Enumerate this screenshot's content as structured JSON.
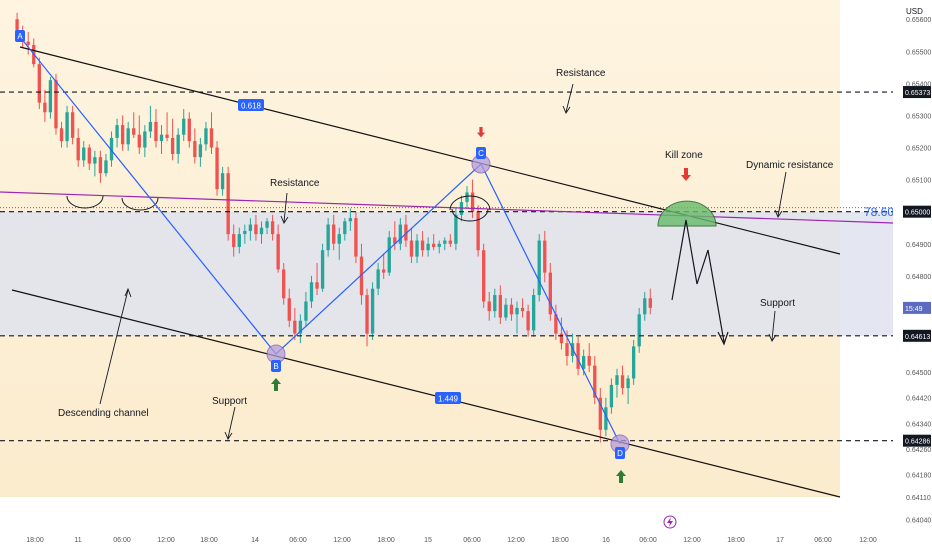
{
  "chart_data": {
    "type": "candlestick",
    "price_axis": {
      "unit_label": "USD",
      "ylim": [
        0.6402,
        0.6566
      ],
      "ticks": [
        "0.65600",
        "0.65500",
        "0.65400",
        "0.65300",
        "0.65200",
        "0.65100",
        "0.64900",
        "0.64800",
        "0.64700",
        "0.64500",
        "0.64420",
        "0.64340",
        "0.64260",
        "0.64180",
        "0.64110",
        "0.64040"
      ],
      "tick_values": [
        0.656,
        0.655,
        0.654,
        0.653,
        0.652,
        0.651,
        0.649,
        0.648,
        0.647,
        0.645,
        0.6442,
        0.6434,
        0.6426,
        0.6418,
        0.6411,
        0.6404
      ]
    },
    "time_axis": {
      "bar_range": [
        -4,
        205
      ],
      "ticks": [
        {
          "bar": 3,
          "label": "18:00"
        },
        {
          "bar": 16,
          "label": "11"
        },
        {
          "bar": 29,
          "label": "06:00"
        },
        {
          "bar": 41,
          "label": "12:00"
        },
        {
          "bar": 54,
          "label": "18:00"
        },
        {
          "bar": 66,
          "label": "14"
        },
        {
          "bar": 78,
          "label": "06:00"
        },
        {
          "bar": 90,
          "label": "12:00"
        },
        {
          "bar": 102,
          "label": "18:00"
        },
        {
          "bar": 114,
          "label": "15"
        },
        {
          "bar": 126,
          "label": "06:00"
        },
        {
          "bar": 138,
          "label": "12:00"
        },
        {
          "bar": 150,
          "label": "18:00"
        },
        {
          "bar": 162,
          "label": "16"
        },
        {
          "bar": 174,
          "label": "06:00"
        },
        {
          "bar": 185,
          "label": "12:00"
        },
        {
          "bar": 197,
          "label": "18:00"
        },
        {
          "bar": 209,
          "label": "17"
        },
        {
          "bar": 220,
          "label": "06:00"
        },
        {
          "bar": 232,
          "label": "12:00"
        }
      ]
    },
    "candles": [
      [
        0,
        0.656,
        0.6562,
        0.6554,
        0.6556
      ],
      [
        1,
        0.6556,
        0.6558,
        0.6551,
        0.6553
      ],
      [
        2,
        0.6553,
        0.6556,
        0.6549,
        0.6552
      ],
      [
        3,
        0.6552,
        0.6554,
        0.6545,
        0.6546
      ],
      [
        4,
        0.6546,
        0.6548,
        0.6532,
        0.6534
      ],
      [
        5,
        0.6534,
        0.6538,
        0.6528,
        0.6531
      ],
      [
        6,
        0.6531,
        0.6542,
        0.6529,
        0.6541
      ],
      [
        7,
        0.6541,
        0.6543,
        0.6524,
        0.6526
      ],
      [
        8,
        0.6526,
        0.6528,
        0.652,
        0.6522
      ],
      [
        9,
        0.6522,
        0.6533,
        0.652,
        0.6531
      ],
      [
        10,
        0.6531,
        0.6533,
        0.6521,
        0.6523
      ],
      [
        11,
        0.6523,
        0.6526,
        0.6514,
        0.6516
      ],
      [
        12,
        0.6516,
        0.6522,
        0.6514,
        0.652
      ],
      [
        13,
        0.652,
        0.6521,
        0.6513,
        0.6515
      ],
      [
        14,
        0.6515,
        0.6519,
        0.6511,
        0.6517
      ],
      [
        15,
        0.6517,
        0.6519,
        0.6509,
        0.6512
      ],
      [
        16,
        0.6512,
        0.6518,
        0.6511,
        0.6516
      ],
      [
        17,
        0.6516,
        0.6525,
        0.6514,
        0.6523
      ],
      [
        18,
        0.6523,
        0.6529,
        0.652,
        0.6527
      ],
      [
        19,
        0.6527,
        0.653,
        0.6519,
        0.6521
      ],
      [
        20,
        0.6521,
        0.6528,
        0.6519,
        0.6526
      ],
      [
        21,
        0.6526,
        0.6531,
        0.6523,
        0.6524
      ],
      [
        22,
        0.6524,
        0.653,
        0.6518,
        0.652
      ],
      [
        23,
        0.652,
        0.6527,
        0.6517,
        0.6525
      ],
      [
        24,
        0.6525,
        0.6533,
        0.6523,
        0.6528
      ],
      [
        25,
        0.6528,
        0.6532,
        0.652,
        0.6522
      ],
      [
        26,
        0.6522,
        0.6527,
        0.6518,
        0.6524
      ],
      [
        27,
        0.6524,
        0.6531,
        0.6522,
        0.6523
      ],
      [
        28,
        0.6523,
        0.6529,
        0.6516,
        0.6518
      ],
      [
        29,
        0.6518,
        0.6526,
        0.6515,
        0.6524
      ],
      [
        30,
        0.6524,
        0.6532,
        0.6522,
        0.6529
      ],
      [
        31,
        0.6529,
        0.6531,
        0.652,
        0.6522
      ],
      [
        32,
        0.6522,
        0.6526,
        0.6515,
        0.6517
      ],
      [
        33,
        0.6517,
        0.6523,
        0.6514,
        0.6521
      ],
      [
        34,
        0.6521,
        0.6528,
        0.6519,
        0.6526
      ],
      [
        35,
        0.6526,
        0.6531,
        0.6518,
        0.652
      ],
      [
        36,
        0.652,
        0.6522,
        0.6505,
        0.6507
      ],
      [
        37,
        0.6507,
        0.6514,
        0.6505,
        0.6512
      ],
      [
        38,
        0.6512,
        0.6514,
        0.6491,
        0.6493
      ],
      [
        39,
        0.6493,
        0.6496,
        0.6486,
        0.6489
      ],
      [
        40,
        0.6489,
        0.6495,
        0.6487,
        0.6493
      ],
      [
        41,
        0.6493,
        0.6496,
        0.649,
        0.6494
      ],
      [
        42,
        0.6494,
        0.6498,
        0.6491,
        0.6496
      ],
      [
        43,
        0.6496,
        0.6499,
        0.6491,
        0.6493
      ],
      [
        44,
        0.6493,
        0.6497,
        0.649,
        0.6495
      ],
      [
        45,
        0.6495,
        0.6498,
        0.6493,
        0.6497
      ],
      [
        46,
        0.6497,
        0.6499,
        0.6491,
        0.6493
      ],
      [
        47,
        0.6493,
        0.6496,
        0.6481,
        0.6482
      ],
      [
        48,
        0.6482,
        0.6484,
        0.6471,
        0.6473
      ],
      [
        49,
        0.6473,
        0.6476,
        0.6464,
        0.6466
      ],
      [
        50,
        0.6466,
        0.647,
        0.646,
        0.6462
      ],
      [
        51,
        0.6462,
        0.6468,
        0.6459,
        0.6466
      ],
      [
        52,
        0.6466,
        0.6475,
        0.6464,
        0.6472
      ],
      [
        53,
        0.6472,
        0.648,
        0.647,
        0.6478
      ],
      [
        54,
        0.6478,
        0.6484,
        0.6474,
        0.6476
      ],
      [
        55,
        0.6476,
        0.649,
        0.6475,
        0.6488
      ],
      [
        56,
        0.6488,
        0.6498,
        0.6486,
        0.6496
      ],
      [
        57,
        0.6496,
        0.6499,
        0.6488,
        0.649
      ],
      [
        58,
        0.649,
        0.6495,
        0.6485,
        0.6493
      ],
      [
        59,
        0.6493,
        0.6498,
        0.6491,
        0.6497
      ],
      [
        60,
        0.6497,
        0.6501,
        0.6494,
        0.6498
      ],
      [
        61,
        0.6498,
        0.65,
        0.6484,
        0.6486
      ],
      [
        62,
        0.6486,
        0.649,
        0.6471,
        0.6474
      ],
      [
        63,
        0.6474,
        0.6476,
        0.6458,
        0.6462
      ],
      [
        64,
        0.6462,
        0.6478,
        0.646,
        0.6476
      ],
      [
        65,
        0.6476,
        0.6484,
        0.6474,
        0.6482
      ],
      [
        66,
        0.6482,
        0.6487,
        0.6479,
        0.6481
      ],
      [
        67,
        0.6481,
        0.6494,
        0.648,
        0.6492
      ],
      [
        68,
        0.6492,
        0.6497,
        0.6488,
        0.649
      ],
      [
        69,
        0.649,
        0.6498,
        0.6488,
        0.6496
      ],
      [
        70,
        0.6496,
        0.6499,
        0.6489,
        0.6491
      ],
      [
        71,
        0.6491,
        0.6495,
        0.6484,
        0.6486
      ],
      [
        72,
        0.6486,
        0.6493,
        0.6484,
        0.6491
      ],
      [
        73,
        0.6491,
        0.6494,
        0.6486,
        0.6488
      ],
      [
        74,
        0.6488,
        0.6492,
        0.6486,
        0.649
      ],
      [
        75,
        0.649,
        0.6493,
        0.6488,
        0.6489
      ],
      [
        76,
        0.6489,
        0.6491,
        0.6487,
        0.649
      ],
      [
        77,
        0.649,
        0.6492,
        0.6488,
        0.6491
      ],
      [
        78,
        0.6491,
        0.6493,
        0.6489,
        0.649
      ],
      [
        79,
        0.649,
        0.6501,
        0.6488,
        0.6499
      ],
      [
        80,
        0.6499,
        0.6505,
        0.6497,
        0.6503
      ],
      [
        81,
        0.6503,
        0.6508,
        0.6501,
        0.6506
      ],
      [
        82,
        0.6506,
        0.651,
        0.6498,
        0.65
      ],
      [
        83,
        0.65,
        0.6502,
        0.6486,
        0.6488
      ],
      [
        84,
        0.6488,
        0.649,
        0.647,
        0.6472
      ],
      [
        85,
        0.6472,
        0.6475,
        0.6466,
        0.6469
      ],
      [
        86,
        0.6469,
        0.6476,
        0.6467,
        0.6474
      ],
      [
        87,
        0.6474,
        0.6477,
        0.6465,
        0.6467
      ],
      [
        88,
        0.6467,
        0.6473,
        0.6466,
        0.6471
      ],
      [
        89,
        0.6471,
        0.6473,
        0.6466,
        0.6468
      ],
      [
        90,
        0.6468,
        0.6472,
        0.6462,
        0.647
      ],
      [
        91,
        0.647,
        0.6473,
        0.6467,
        0.6469
      ],
      [
        92,
        0.6469,
        0.6471,
        0.6461,
        0.6463
      ],
      [
        93,
        0.6463,
        0.6476,
        0.6461,
        0.6474
      ],
      [
        94,
        0.6474,
        0.6493,
        0.6472,
        0.6491
      ],
      [
        95,
        0.6491,
        0.6494,
        0.6478,
        0.6481
      ],
      [
        96,
        0.6481,
        0.6484,
        0.6466,
        0.6468
      ],
      [
        97,
        0.6468,
        0.6471,
        0.646,
        0.6462
      ],
      [
        98,
        0.6462,
        0.6467,
        0.6457,
        0.6459
      ],
      [
        99,
        0.6459,
        0.6463,
        0.6452,
        0.6455
      ],
      [
        100,
        0.6455,
        0.6462,
        0.6453,
        0.6459
      ],
      [
        101,
        0.6459,
        0.6461,
        0.6449,
        0.6451
      ],
      [
        102,
        0.6451,
        0.6457,
        0.6449,
        0.6455
      ],
      [
        103,
        0.6455,
        0.6459,
        0.645,
        0.6452
      ],
      [
        104,
        0.6452,
        0.6455,
        0.644,
        0.6442
      ],
      [
        105,
        0.6442,
        0.6445,
        0.6428,
        0.6432
      ],
      [
        106,
        0.6432,
        0.6442,
        0.643,
        0.6439
      ],
      [
        107,
        0.6439,
        0.6448,
        0.6437,
        0.6446
      ],
      [
        108,
        0.6446,
        0.6451,
        0.6442,
        0.6449
      ],
      [
        109,
        0.6449,
        0.6452,
        0.6443,
        0.6445
      ],
      [
        110,
        0.6445,
        0.6449,
        0.644,
        0.6448
      ],
      [
        111,
        0.6448,
        0.646,
        0.6446,
        0.6458
      ],
      [
        112,
        0.6458,
        0.647,
        0.6456,
        0.6468
      ],
      [
        113,
        0.6468,
        0.6475,
        0.6466,
        0.6473
      ],
      [
        114,
        0.6473,
        0.6476,
        0.6468,
        0.647
      ]
    ]
  },
  "axis_title": "USD",
  "price_tags": [
    {
      "label": "0.65373",
      "price": 0.65373,
      "style": "dark"
    },
    {
      "label": "0.65000",
      "price": 0.65,
      "style": "dark"
    },
    {
      "label": "0.64613",
      "price": 0.64613,
      "style": "dark"
    },
    {
      "label": "0.64286",
      "price": 0.64286,
      "style": "dark"
    },
    {
      "label": "15:49",
      "price": 0.647,
      "style": "blue"
    }
  ],
  "horizontal_levels": [
    0.65373,
    0.65,
    0.64613,
    0.64286
  ],
  "annotations": {
    "resistance_top": "Resistance",
    "resistance_mid": "Resistance",
    "kill_zone": "Kill zone",
    "dynamic_resistance": "Dynamic resistance",
    "fib_level": "78.60%",
    "support_right": "Support",
    "support_left": "Support",
    "descending_channel": "Descending channel",
    "ratio_ab": "0.618",
    "ratio_cd": "1.449"
  },
  "pattern_points": {
    "A": {
      "label": "A",
      "bar": 0,
      "price": 0.6559
    },
    "B": {
      "label": "B",
      "bar": 63,
      "price": 0.6459
    },
    "C": {
      "label": "C",
      "bar": 114,
      "price": 0.6521
    },
    "D": {
      "label": "D",
      "bar": 149,
      "price": 0.6428
    }
  },
  "colors": {
    "bull": "#26a69a",
    "bear": "#ef5350",
    "pattern": "#2962ff",
    "trendline": "#111111",
    "magenta_line": "#9c27b0",
    "arrow_red": "#e53935",
    "arrow_green": "#2e7d32",
    "zone_fill": "#fcecc8",
    "band_fill": "#dfe2ee",
    "kill_zone": "#66bb6a"
  }
}
